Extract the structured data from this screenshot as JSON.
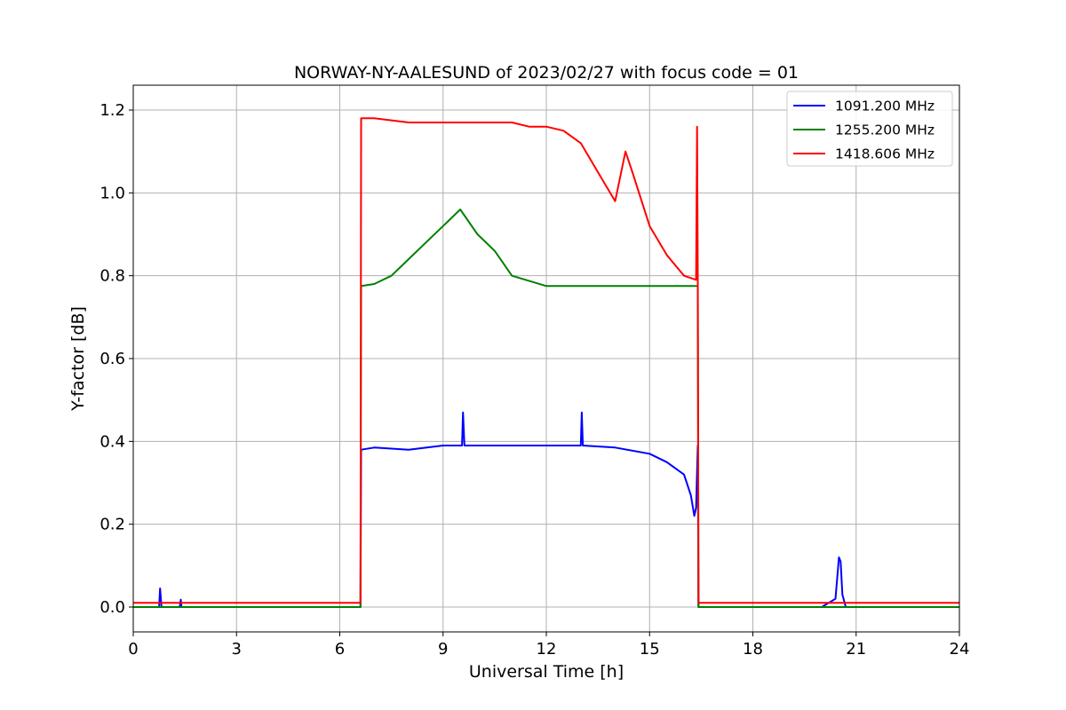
{
  "chart_data": {
    "type": "line",
    "title": "NORWAY-NY-AALESUND of 2023/02/27 with focus code = 01",
    "xlabel": "Universal Time [h]",
    "ylabel": "Y-factor [dB]",
    "xlim": [
      0,
      24
    ],
    "ylim": [
      -0.06,
      1.26
    ],
    "xticks": [
      0,
      3,
      6,
      9,
      12,
      15,
      18,
      21,
      24
    ],
    "xtick_labels": [
      "0",
      "3",
      "6",
      "9",
      "12",
      "15",
      "18",
      "21",
      "24"
    ],
    "yticks": [
      0.0,
      0.2,
      0.4,
      0.6,
      0.8,
      1.0,
      1.2
    ],
    "ytick_labels": [
      "0.0",
      "0.2",
      "0.4",
      "0.6",
      "0.8",
      "1.0",
      "1.2"
    ],
    "grid": true,
    "legend_position": "top-right",
    "series": [
      {
        "name": "1091.200 MHz",
        "color": "#0000ff",
        "x": [
          0,
          0.75,
          0.78,
          0.82,
          1.35,
          1.38,
          1.4,
          6.6,
          6.62,
          7.0,
          8.0,
          9.0,
          9.55,
          9.58,
          9.62,
          10.0,
          11.0,
          12.0,
          13.0,
          13.03,
          13.06,
          14.0,
          15.0,
          15.5,
          16.0,
          16.2,
          16.3,
          16.35,
          16.4,
          16.42,
          16.45,
          17.0,
          18.0,
          19.0,
          20.0,
          20.4,
          20.5,
          20.55,
          20.6,
          20.7,
          21.0,
          22.0,
          23.0,
          24.0
        ],
        "y": [
          0.0,
          0.0,
          0.045,
          0.0,
          0.0,
          0.018,
          0.0,
          0.0,
          0.38,
          0.385,
          0.38,
          0.39,
          0.39,
          0.47,
          0.39,
          0.39,
          0.39,
          0.39,
          0.39,
          0.47,
          0.39,
          0.385,
          0.37,
          0.35,
          0.32,
          0.27,
          0.22,
          0.24,
          0.39,
          0.0,
          0.0,
          0.0,
          0.0,
          0.0,
          0.0,
          0.02,
          0.12,
          0.11,
          0.03,
          0.0,
          0.0,
          0.0,
          0.0,
          0.0
        ]
      },
      {
        "name": "1255.200 MHz",
        "color": "#008000",
        "x": [
          0,
          6.6,
          6.62,
          7.0,
          7.5,
          8.0,
          8.5,
          9.0,
          9.5,
          10.0,
          10.5,
          11.0,
          12.0,
          13.0,
          14.0,
          15.0,
          16.0,
          16.4,
          16.42,
          16.45,
          17.0,
          18.0,
          18.5,
          19.0,
          20.0,
          21.0,
          22.0,
          23.0,
          24.0
        ],
        "y": [
          0.0,
          0.0,
          0.775,
          0.78,
          0.8,
          0.84,
          0.88,
          0.92,
          0.96,
          0.9,
          0.86,
          0.8,
          0.775,
          0.775,
          0.775,
          0.775,
          0.775,
          0.775,
          0.0,
          0.0,
          0.0,
          0.0,
          0.0,
          0.0,
          0.0,
          0.0,
          0.0,
          0.0,
          0.0
        ]
      },
      {
        "name": "1418.606 MHz",
        "color": "#ff0000",
        "x": [
          0,
          6.6,
          6.62,
          7.0,
          8.0,
          9.0,
          10.0,
          11.0,
          11.5,
          12.0,
          12.5,
          13.0,
          13.5,
          14.0,
          14.3,
          14.5,
          15.0,
          15.5,
          16.0,
          16.35,
          16.38,
          16.4,
          16.42,
          16.45,
          17.0,
          18.0,
          19.0,
          20.0,
          21.0,
          22.0,
          23.0,
          24.0
        ],
        "y": [
          0.01,
          0.01,
          1.18,
          1.18,
          1.17,
          1.17,
          1.17,
          1.17,
          1.16,
          1.16,
          1.15,
          1.12,
          1.05,
          0.98,
          1.1,
          1.05,
          0.92,
          0.85,
          0.8,
          0.79,
          1.16,
          0.8,
          0.01,
          0.01,
          0.01,
          0.01,
          0.01,
          0.01,
          0.01,
          0.01,
          0.01,
          0.01
        ]
      }
    ]
  }
}
